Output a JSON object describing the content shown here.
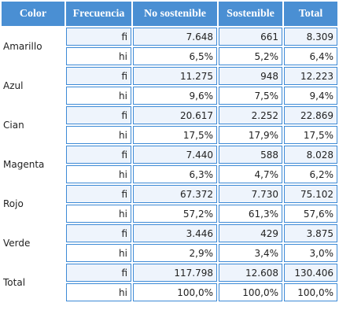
{
  "table": {
    "header": [
      "Color",
      "Frecuencia",
      "No sostenible",
      "Sostenible",
      "Total"
    ],
    "groups": [
      {
        "label": "Amarillo",
        "rows": [
          {
            "freq": "fi",
            "values": [
              "7.648",
              "661",
              "8.309"
            ]
          },
          {
            "freq": "hi",
            "values": [
              "6,5%",
              "5,2%",
              "6,4%"
            ]
          }
        ]
      },
      {
        "label": "Azul",
        "rows": [
          {
            "freq": "fi",
            "values": [
              "11.275",
              "948",
              "12.223"
            ]
          },
          {
            "freq": "hi",
            "values": [
              "9,6%",
              "7,5%",
              "9,4%"
            ]
          }
        ]
      },
      {
        "label": "Cian",
        "rows": [
          {
            "freq": "fi",
            "values": [
              "20.617",
              "2.252",
              "22.869"
            ]
          },
          {
            "freq": "hi",
            "values": [
              "17,5%",
              "17,9%",
              "17,5%"
            ]
          }
        ]
      },
      {
        "label": "Magenta",
        "rows": [
          {
            "freq": "fi",
            "values": [
              "7.440",
              "588",
              "8.028"
            ]
          },
          {
            "freq": "hi",
            "values": [
              "6,3%",
              "4,7%",
              "6,2%"
            ]
          }
        ]
      },
      {
        "label": "Rojo",
        "rows": [
          {
            "freq": "fi",
            "values": [
              "67.372",
              "7.730",
              "75.102"
            ]
          },
          {
            "freq": "hi",
            "values": [
              "57,2%",
              "61,3%",
              "57,6%"
            ]
          }
        ]
      },
      {
        "label": "Verde",
        "rows": [
          {
            "freq": "fi",
            "values": [
              "3.446",
              "429",
              "3.875"
            ]
          },
          {
            "freq": "hi",
            "values": [
              "2,9%",
              "3,4%",
              "3,0%"
            ]
          }
        ]
      },
      {
        "label": "Total",
        "rows": [
          {
            "freq": "fi",
            "values": [
              "117.798",
              "12.608",
              "130.406"
            ]
          },
          {
            "freq": "hi",
            "values": [
              "100,0%",
              "100,0%",
              "100,0%"
            ]
          }
        ]
      }
    ]
  }
}
